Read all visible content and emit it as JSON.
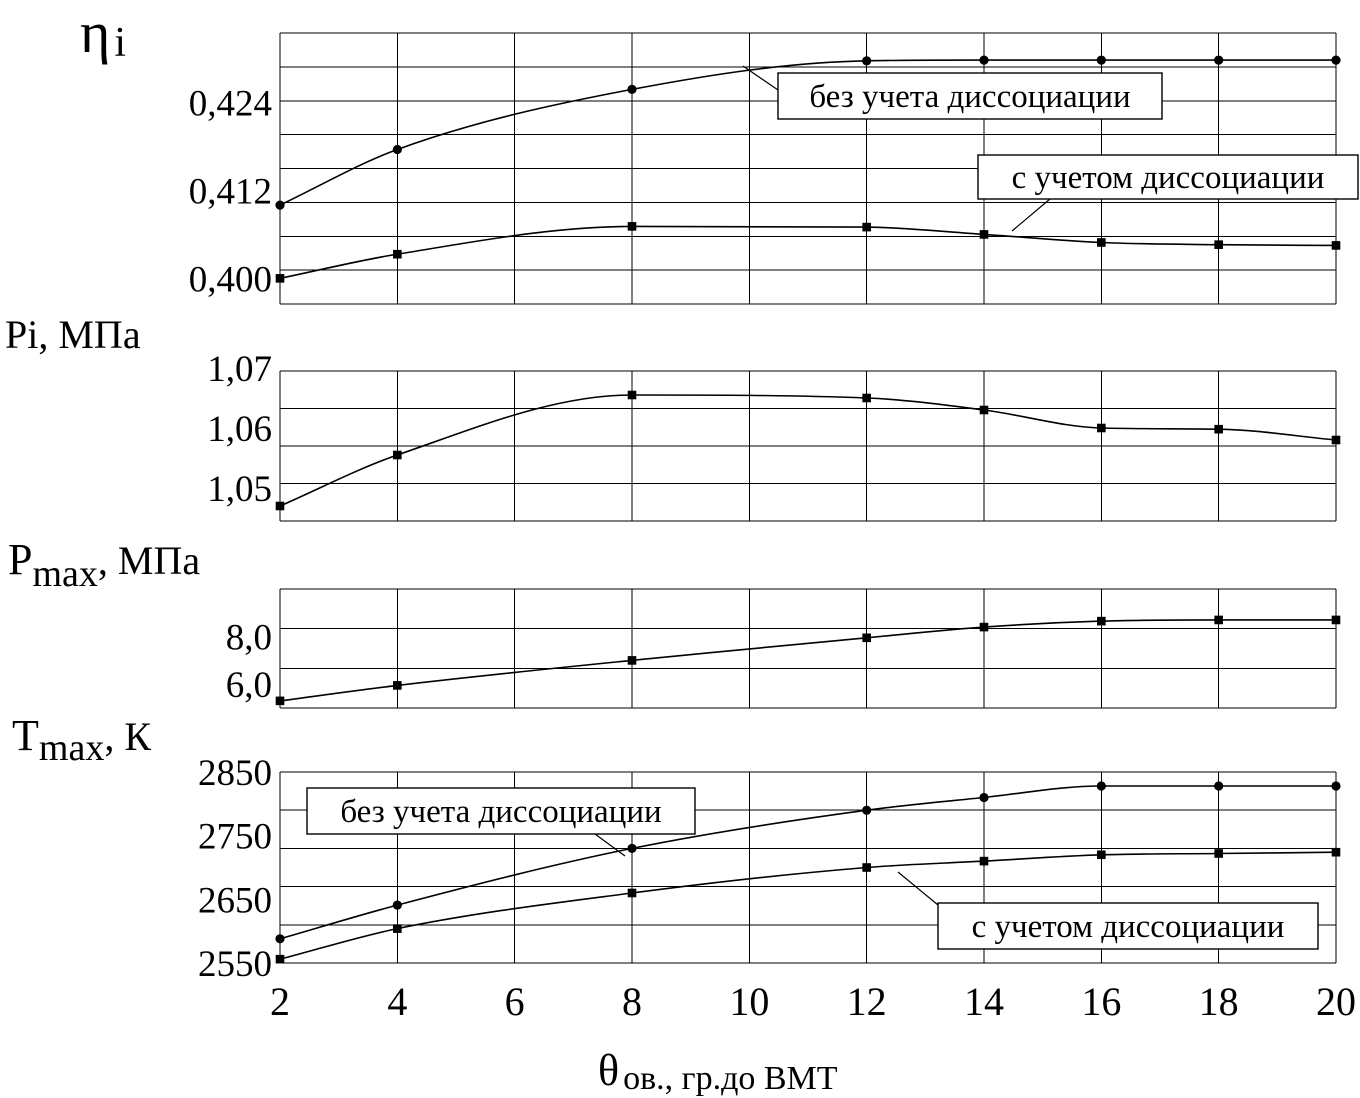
{
  "chart_data": [
    {
      "type": "line",
      "ylabel": "ηi",
      "ylabel_main": "η",
      "ylabel_sub": "i",
      "xlim": [
        2,
        20
      ],
      "ylim": [
        0.3965,
        0.4335
      ],
      "y_ticks": [
        0.4,
        0.412,
        0.424
      ],
      "y_tick_labels": [
        "0,400",
        "0,412",
        "0,424"
      ],
      "series": [
        {
          "name": "без учета диссоциации",
          "marker": "circle",
          "x": [
            2,
            4,
            8,
            12,
            14,
            16,
            18,
            20
          ],
          "values": [
            0.41,
            0.4176,
            0.4258,
            0.4297,
            0.4298,
            0.4298,
            0.4298,
            0.4298
          ]
        },
        {
          "name": "с учетом диссоциации",
          "marker": "square",
          "x": [
            2,
            4,
            8,
            12,
            14,
            16,
            18,
            20
          ],
          "values": [
            0.4,
            0.4033,
            0.4071,
            0.407,
            0.406,
            0.4049,
            0.4046,
            0.4045
          ]
        }
      ],
      "annotations": [
        {
          "text": "без учета диссоциации",
          "series": 0
        },
        {
          "text": "с учетом диссоциации",
          "series": 1
        }
      ]
    },
    {
      "type": "line",
      "ylabel": "Pi, МПа",
      "xlim": [
        2,
        20
      ],
      "ylim": [
        1.0445,
        1.0695
      ],
      "y_ticks": [
        1.05,
        1.06,
        1.07
      ],
      "y_tick_labels": [
        "1,05",
        "1,06",
        "1,07"
      ],
      "series": [
        {
          "marker": "square",
          "x": [
            2,
            4,
            8,
            12,
            14,
            16,
            18,
            20
          ],
          "values": [
            1.047,
            1.0555,
            1.0655,
            1.065,
            1.063,
            1.06,
            1.0598,
            1.058
          ]
        }
      ]
    },
    {
      "type": "line",
      "ylabel": "Pmax, МПа",
      "ylabel_main": "P",
      "ylabel_sub": "max",
      "ylabel_tail": ", МПа",
      "xlim": [
        2,
        20
      ],
      "ylim": [
        5.0,
        10.0
      ],
      "y_ticks": [
        6.0,
        8.0
      ],
      "y_tick_labels": [
        "6,0",
        "8,0"
      ],
      "series": [
        {
          "marker": "square",
          "x": [
            2,
            4,
            8,
            12,
            14,
            16,
            18,
            20
          ],
          "values": [
            5.3,
            5.95,
            7.0,
            7.95,
            8.4,
            8.65,
            8.7,
            8.7
          ]
        }
      ]
    },
    {
      "type": "line",
      "ylabel": "Tmax, К",
      "ylabel_main": "T",
      "ylabel_sub": "max",
      "ylabel_tail": ", К",
      "xlabel": "θов., гр.до ВМТ",
      "xlabel_main": "θ",
      "xlabel_sub": "ов., гр.до ВМТ",
      "xlim": [
        2,
        20
      ],
      "x_ticks": [
        2,
        4,
        6,
        8,
        10,
        12,
        14,
        16,
        18,
        20
      ],
      "ylim": [
        2550,
        2850
      ],
      "y_ticks": [
        2550,
        2650,
        2750,
        2850
      ],
      "y_tick_labels": [
        "2550",
        "2650",
        "2750",
        "2850"
      ],
      "series": [
        {
          "name": "без учета диссоциации",
          "marker": "circle",
          "x": [
            2,
            4,
            8,
            12,
            14,
            16,
            18,
            20
          ],
          "values": [
            2588,
            2641,
            2730,
            2790,
            2810,
            2828,
            2828,
            2828
          ]
        },
        {
          "name": "с учетом диссоциации",
          "marker": "square",
          "x": [
            2,
            4,
            8,
            12,
            14,
            16,
            18,
            20
          ],
          "values": [
            2556,
            2604,
            2660,
            2700,
            2710,
            2720,
            2722,
            2724
          ]
        }
      ],
      "annotations": [
        {
          "text": "без учета диссоциации",
          "series": 0
        },
        {
          "text": "с учетом диссоциации",
          "series": 1
        }
      ]
    }
  ]
}
